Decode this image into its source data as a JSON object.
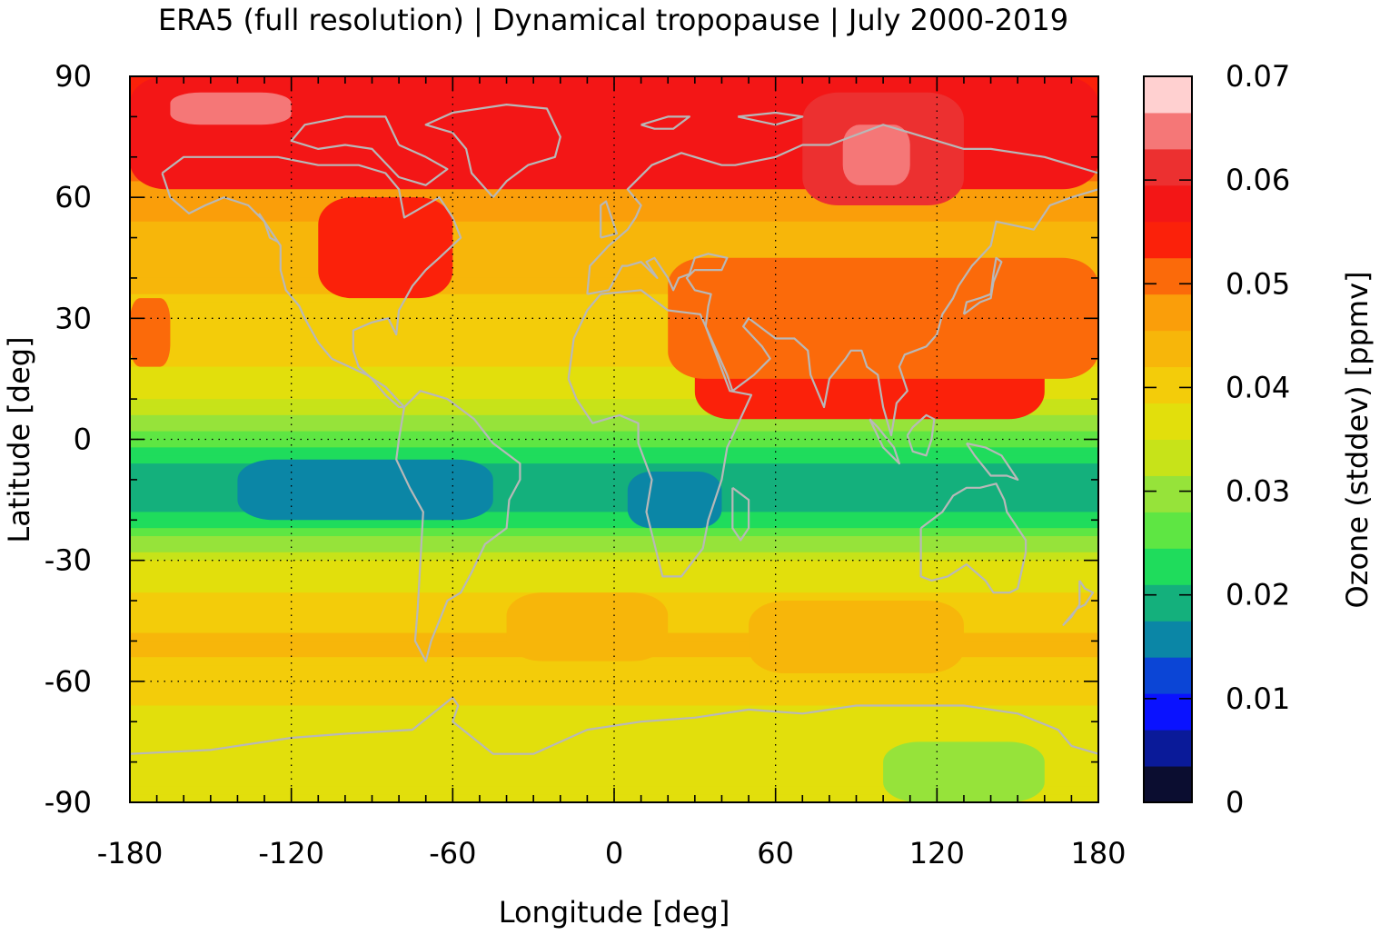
{
  "chart_data": {
    "type": "heatmap",
    "title": "ERA5 (full resolution) | Dynamical tropopause | July 2000-2019",
    "xlabel": "Longitude [deg]",
    "ylabel": "Latitude [deg]",
    "colorbar_label": "Ozone (stddev) [ppmv]",
    "xlim": [
      -180,
      180
    ],
    "ylim": [
      -90,
      90
    ],
    "x_ticks": [
      "-180",
      "-120",
      "-60",
      "0",
      "60",
      "120",
      "180"
    ],
    "y_ticks": [
      "90",
      "60",
      "30",
      "0",
      "-30",
      "-60",
      "-90"
    ],
    "colorbar": {
      "range": [
        0,
        0.07
      ],
      "ticks": [
        "0.07",
        "0.06",
        "0.05",
        "0.04",
        "0.03",
        "0.02",
        "0.01",
        "0"
      ],
      "levels": [
        {
          "value": 0.0,
          "color": "#0b0d30"
        },
        {
          "value": 0.0035,
          "color": "#0a1a99"
        },
        {
          "value": 0.007,
          "color": "#0a12ff"
        },
        {
          "value": 0.0105,
          "color": "#0b45d6"
        },
        {
          "value": 0.014,
          "color": "#0b86a6"
        },
        {
          "value": 0.0175,
          "color": "#14b07c"
        },
        {
          "value": 0.021,
          "color": "#1fdc5c"
        },
        {
          "value": 0.0245,
          "color": "#5ee643"
        },
        {
          "value": 0.028,
          "color": "#96e33a"
        },
        {
          "value": 0.0315,
          "color": "#c7e319"
        },
        {
          "value": 0.035,
          "color": "#e2df0c"
        },
        {
          "value": 0.0385,
          "color": "#f3cc0a"
        },
        {
          "value": 0.042,
          "color": "#f7b60a"
        },
        {
          "value": 0.0455,
          "color": "#fa9e0a"
        },
        {
          "value": 0.049,
          "color": "#fb6a0a"
        },
        {
          "value": 0.0525,
          "color": "#fb210a"
        },
        {
          "value": 0.056,
          "color": "#f31616"
        },
        {
          "value": 0.0595,
          "color": "#ec3030"
        },
        {
          "value": 0.063,
          "color": "#f57777"
        },
        {
          "value": 0.0665,
          "color": "#ffd0d0"
        }
      ]
    },
    "zonal_mean_profile": [
      {
        "lat": 90,
        "value": 0.055
      },
      {
        "lat": 80,
        "value": 0.054
      },
      {
        "lat": 70,
        "value": 0.052
      },
      {
        "lat": 60,
        "value": 0.046
      },
      {
        "lat": 50,
        "value": 0.045
      },
      {
        "lat": 40,
        "value": 0.043
      },
      {
        "lat": 30,
        "value": 0.041
      },
      {
        "lat": 20,
        "value": 0.039
      },
      {
        "lat": 10,
        "value": 0.035
      },
      {
        "lat": 5,
        "value": 0.031
      },
      {
        "lat": 0,
        "value": 0.026
      },
      {
        "lat": -5,
        "value": 0.022
      },
      {
        "lat": -10,
        "value": 0.0185
      },
      {
        "lat": -15,
        "value": 0.0195
      },
      {
        "lat": -20,
        "value": 0.022
      },
      {
        "lat": -25,
        "value": 0.028
      },
      {
        "lat": -30,
        "value": 0.035
      },
      {
        "lat": -40,
        "value": 0.039
      },
      {
        "lat": -50,
        "value": 0.043
      },
      {
        "lat": -60,
        "value": 0.04
      },
      {
        "lat": -70,
        "value": 0.037
      },
      {
        "lat": -80,
        "value": 0.035
      },
      {
        "lat": -90,
        "value": 0.035
      }
    ],
    "regional_features": [
      {
        "lon": [
          -180,
          180
        ],
        "lat": [
          62,
          90
        ],
        "value": 0.056
      },
      {
        "lon": [
          -165,
          -120
        ],
        "lat": [
          78,
          86
        ],
        "value": 0.064
      },
      {
        "lon": [
          -110,
          -60
        ],
        "lat": [
          35,
          60
        ],
        "value": 0.054
      },
      {
        "lon": [
          -180,
          -165
        ],
        "lat": [
          18,
          35
        ],
        "value": 0.049
      },
      {
        "lon": [
          30,
          160
        ],
        "lat": [
          5,
          40
        ],
        "value": 0.053
      },
      {
        "lon": [
          20,
          180
        ],
        "lat": [
          15,
          45
        ],
        "value": 0.05
      },
      {
        "lon": [
          70,
          130
        ],
        "lat": [
          58,
          86
        ],
        "value": 0.06
      },
      {
        "lon": [
          85,
          110
        ],
        "lat": [
          63,
          78
        ],
        "value": 0.064
      },
      {
        "lon": [
          -140,
          -45
        ],
        "lat": [
          -20,
          -5
        ],
        "value": 0.017
      },
      {
        "lon": [
          5,
          40
        ],
        "lat": [
          -22,
          -8
        ],
        "value": 0.017
      },
      {
        "lon": [
          -40,
          20
        ],
        "lat": [
          -55,
          -38
        ],
        "value": 0.043
      },
      {
        "lon": [
          50,
          130
        ],
        "lat": [
          -58,
          -40
        ],
        "value": 0.044
      },
      {
        "lon": [
          100,
          160
        ],
        "lat": [
          -90,
          -75
        ],
        "value": 0.031
      }
    ]
  }
}
